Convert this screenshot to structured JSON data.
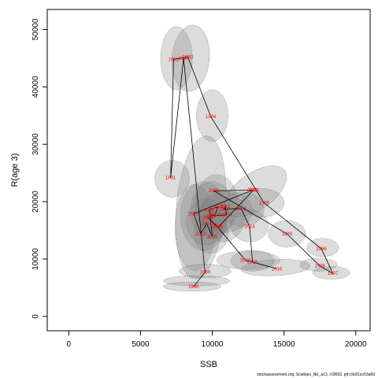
{
  "chart_data": {
    "type": "scatter",
    "title": "",
    "xlabel": "SSB",
    "ylabel": "R(age 3)",
    "xlim": [
      -1500,
      21000
    ],
    "ylim": [
      -2500,
      53500
    ],
    "xticks": [
      0,
      5000,
      10000,
      15000,
      20000
    ],
    "yticks": [
      0,
      10000,
      20000,
      30000,
      40000,
      50000
    ],
    "xtick_labels": [
      "0",
      "5000",
      "10000",
      "15000",
      "20000"
    ],
    "ytick_labels": [
      "0",
      "10000",
      "20000",
      "30000",
      "40000",
      "50000"
    ],
    "grid": false,
    "legend": "none",
    "colors": {
      "label": "#ff0000",
      "ellipse_fill": "rgba(130,130,130,0.28)",
      "ellipse_stroke": "#666666",
      "line": "#000000"
    },
    "points": [
      {
        "year": "1988",
        "ssb": 8700,
        "r": 5200
      },
      {
        "year": "1989",
        "ssb": 9500,
        "r": 7700
      },
      {
        "year": "1990",
        "ssb": 8000,
        "r": 45000
      },
      {
        "year": "1991",
        "ssb": 7100,
        "r": 24200
      },
      {
        "year": "1992",
        "ssb": 7300,
        "r": 44800
      },
      {
        "year": "1993",
        "ssb": 8300,
        "r": 45200
      },
      {
        "year": "1994",
        "ssb": 9900,
        "r": 34800
      },
      {
        "year": "1995",
        "ssb": 13600,
        "r": 19800
      },
      {
        "year": "1996",
        "ssb": 17600,
        "r": 11800
      },
      {
        "year": "1997",
        "ssb": 18400,
        "r": 7500
      },
      {
        "year": "1998",
        "ssb": 17500,
        "r": 8800
      },
      {
        "year": "1999",
        "ssb": 15200,
        "r": 14400
      },
      {
        "year": "2000",
        "ssb": 10100,
        "r": 21900
      },
      {
        "year": "2001",
        "ssb": 12800,
        "r": 22000
      },
      {
        "year": "2002",
        "ssb": 8700,
        "r": 17900
      },
      {
        "year": "2003",
        "ssb": 9200,
        "r": 14400
      },
      {
        "year": "2004",
        "ssb": 9600,
        "r": 16200
      },
      {
        "year": "2005",
        "ssb": 10000,
        "r": 13900
      },
      {
        "year": "2006",
        "ssb": 9800,
        "r": 18600
      },
      {
        "year": "2007",
        "ssb": 10400,
        "r": 19100
      },
      {
        "year": "2008",
        "ssb": 10200,
        "r": 17800
      },
      {
        "year": "2009",
        "ssb": 9900,
        "r": 17500
      },
      {
        "year": "2010",
        "ssb": 11000,
        "r": 17700
      },
      {
        "year": "2011",
        "ssb": 10900,
        "r": 19200
      },
      {
        "year": "2012",
        "ssb": 10800,
        "r": 18700
      },
      {
        "year": "2013",
        "ssb": 12000,
        "r": 18800
      },
      {
        "year": "2014",
        "ssb": 12600,
        "r": 15700
      },
      {
        "year": "2015",
        "ssb": 12800,
        "r": 9500
      },
      {
        "year": "2016",
        "ssb": 14500,
        "r": 8300
      },
      {
        "year": "2017",
        "ssb": 12300,
        "r": 9800
      },
      {
        "year": "2018",
        "ssb": 10300,
        "r": 15800
      },
      {
        "year": "2019",
        "ssb": 9700,
        "r": 17200
      },
      {
        "year": "2020",
        "ssb": 10400,
        "r": 15500
      },
      {
        "year": "2021",
        "ssb": 12900,
        "r": 22100
      }
    ],
    "ellipses": [
      {
        "cx": 7500,
        "cy": 45000,
        "rx": 1100,
        "ry": 5500,
        "tilt": 0
      },
      {
        "cx": 8500,
        "cy": 45000,
        "rx": 1300,
        "ry": 5800,
        "tilt": 5
      },
      {
        "cx": 10000,
        "cy": 35000,
        "rx": 1100,
        "ry": 4500,
        "tilt": 0
      },
      {
        "cx": 7200,
        "cy": 24000,
        "rx": 1200,
        "ry": 3200,
        "tilt": 0
      },
      {
        "cx": 9200,
        "cy": 19000,
        "rx": 1700,
        "ry": 12500,
        "tilt": 5
      },
      {
        "cx": 8800,
        "cy": 15500,
        "rx": 1400,
        "ry": 7500,
        "tilt": 0
      },
      {
        "cx": 9400,
        "cy": 17500,
        "rx": 1600,
        "ry": 6000,
        "tilt": 0
      },
      {
        "cx": 10000,
        "cy": 18500,
        "rx": 1500,
        "ry": 5000,
        "tilt": 0
      },
      {
        "cx": 10300,
        "cy": 19500,
        "rx": 1500,
        "ry": 5200,
        "tilt": 0
      },
      {
        "cx": 10700,
        "cy": 17500,
        "rx": 1600,
        "ry": 4500,
        "tilt": 0
      },
      {
        "cx": 9900,
        "cy": 14500,
        "rx": 1200,
        "ry": 3500,
        "tilt": 0
      },
      {
        "cx": 9600,
        "cy": 16500,
        "rx": 1400,
        "ry": 4000,
        "tilt": 0
      },
      {
        "cx": 11000,
        "cy": 18200,
        "rx": 1800,
        "ry": 3500,
        "tilt": -10
      },
      {
        "cx": 12100,
        "cy": 18700,
        "rx": 1500,
        "ry": 3000,
        "tilt": 0
      },
      {
        "cx": 12600,
        "cy": 15800,
        "rx": 1300,
        "ry": 2800,
        "tilt": 0
      },
      {
        "cx": 13000,
        "cy": 21800,
        "rx": 2500,
        "ry": 3200,
        "tilt": -35
      },
      {
        "cx": 13500,
        "cy": 19800,
        "rx": 1500,
        "ry": 2500,
        "tilt": 0
      },
      {
        "cx": 15200,
        "cy": 14400,
        "rx": 1300,
        "ry": 2300,
        "tilt": 0
      },
      {
        "cx": 17700,
        "cy": 12000,
        "rx": 1100,
        "ry": 1600,
        "tilt": 0
      },
      {
        "cx": 18300,
        "cy": 7600,
        "rx": 1300,
        "ry": 1100,
        "tilt": 0
      },
      {
        "cx": 17400,
        "cy": 9000,
        "rx": 1300,
        "ry": 1100,
        "tilt": 0
      },
      {
        "cx": 14400,
        "cy": 8500,
        "rx": 2400,
        "ry": 1400,
        "tilt": -3
      },
      {
        "cx": 12500,
        "cy": 9800,
        "rx": 2200,
        "ry": 1600,
        "tilt": 0
      },
      {
        "cx": 12800,
        "cy": 9700,
        "rx": 1500,
        "ry": 1800,
        "tilt": 0
      },
      {
        "cx": 9500,
        "cy": 7900,
        "rx": 1800,
        "ry": 1200,
        "tilt": 0
      },
      {
        "cx": 8900,
        "cy": 6200,
        "rx": 2300,
        "ry": 900,
        "tilt": 0
      },
      {
        "cx": 8600,
        "cy": 5200,
        "rx": 2000,
        "ry": 800,
        "tilt": 0
      }
    ]
  },
  "caption": "stockassessment.org, Scallops_NE_a13, r18602, git:c9c81ec53a0d"
}
